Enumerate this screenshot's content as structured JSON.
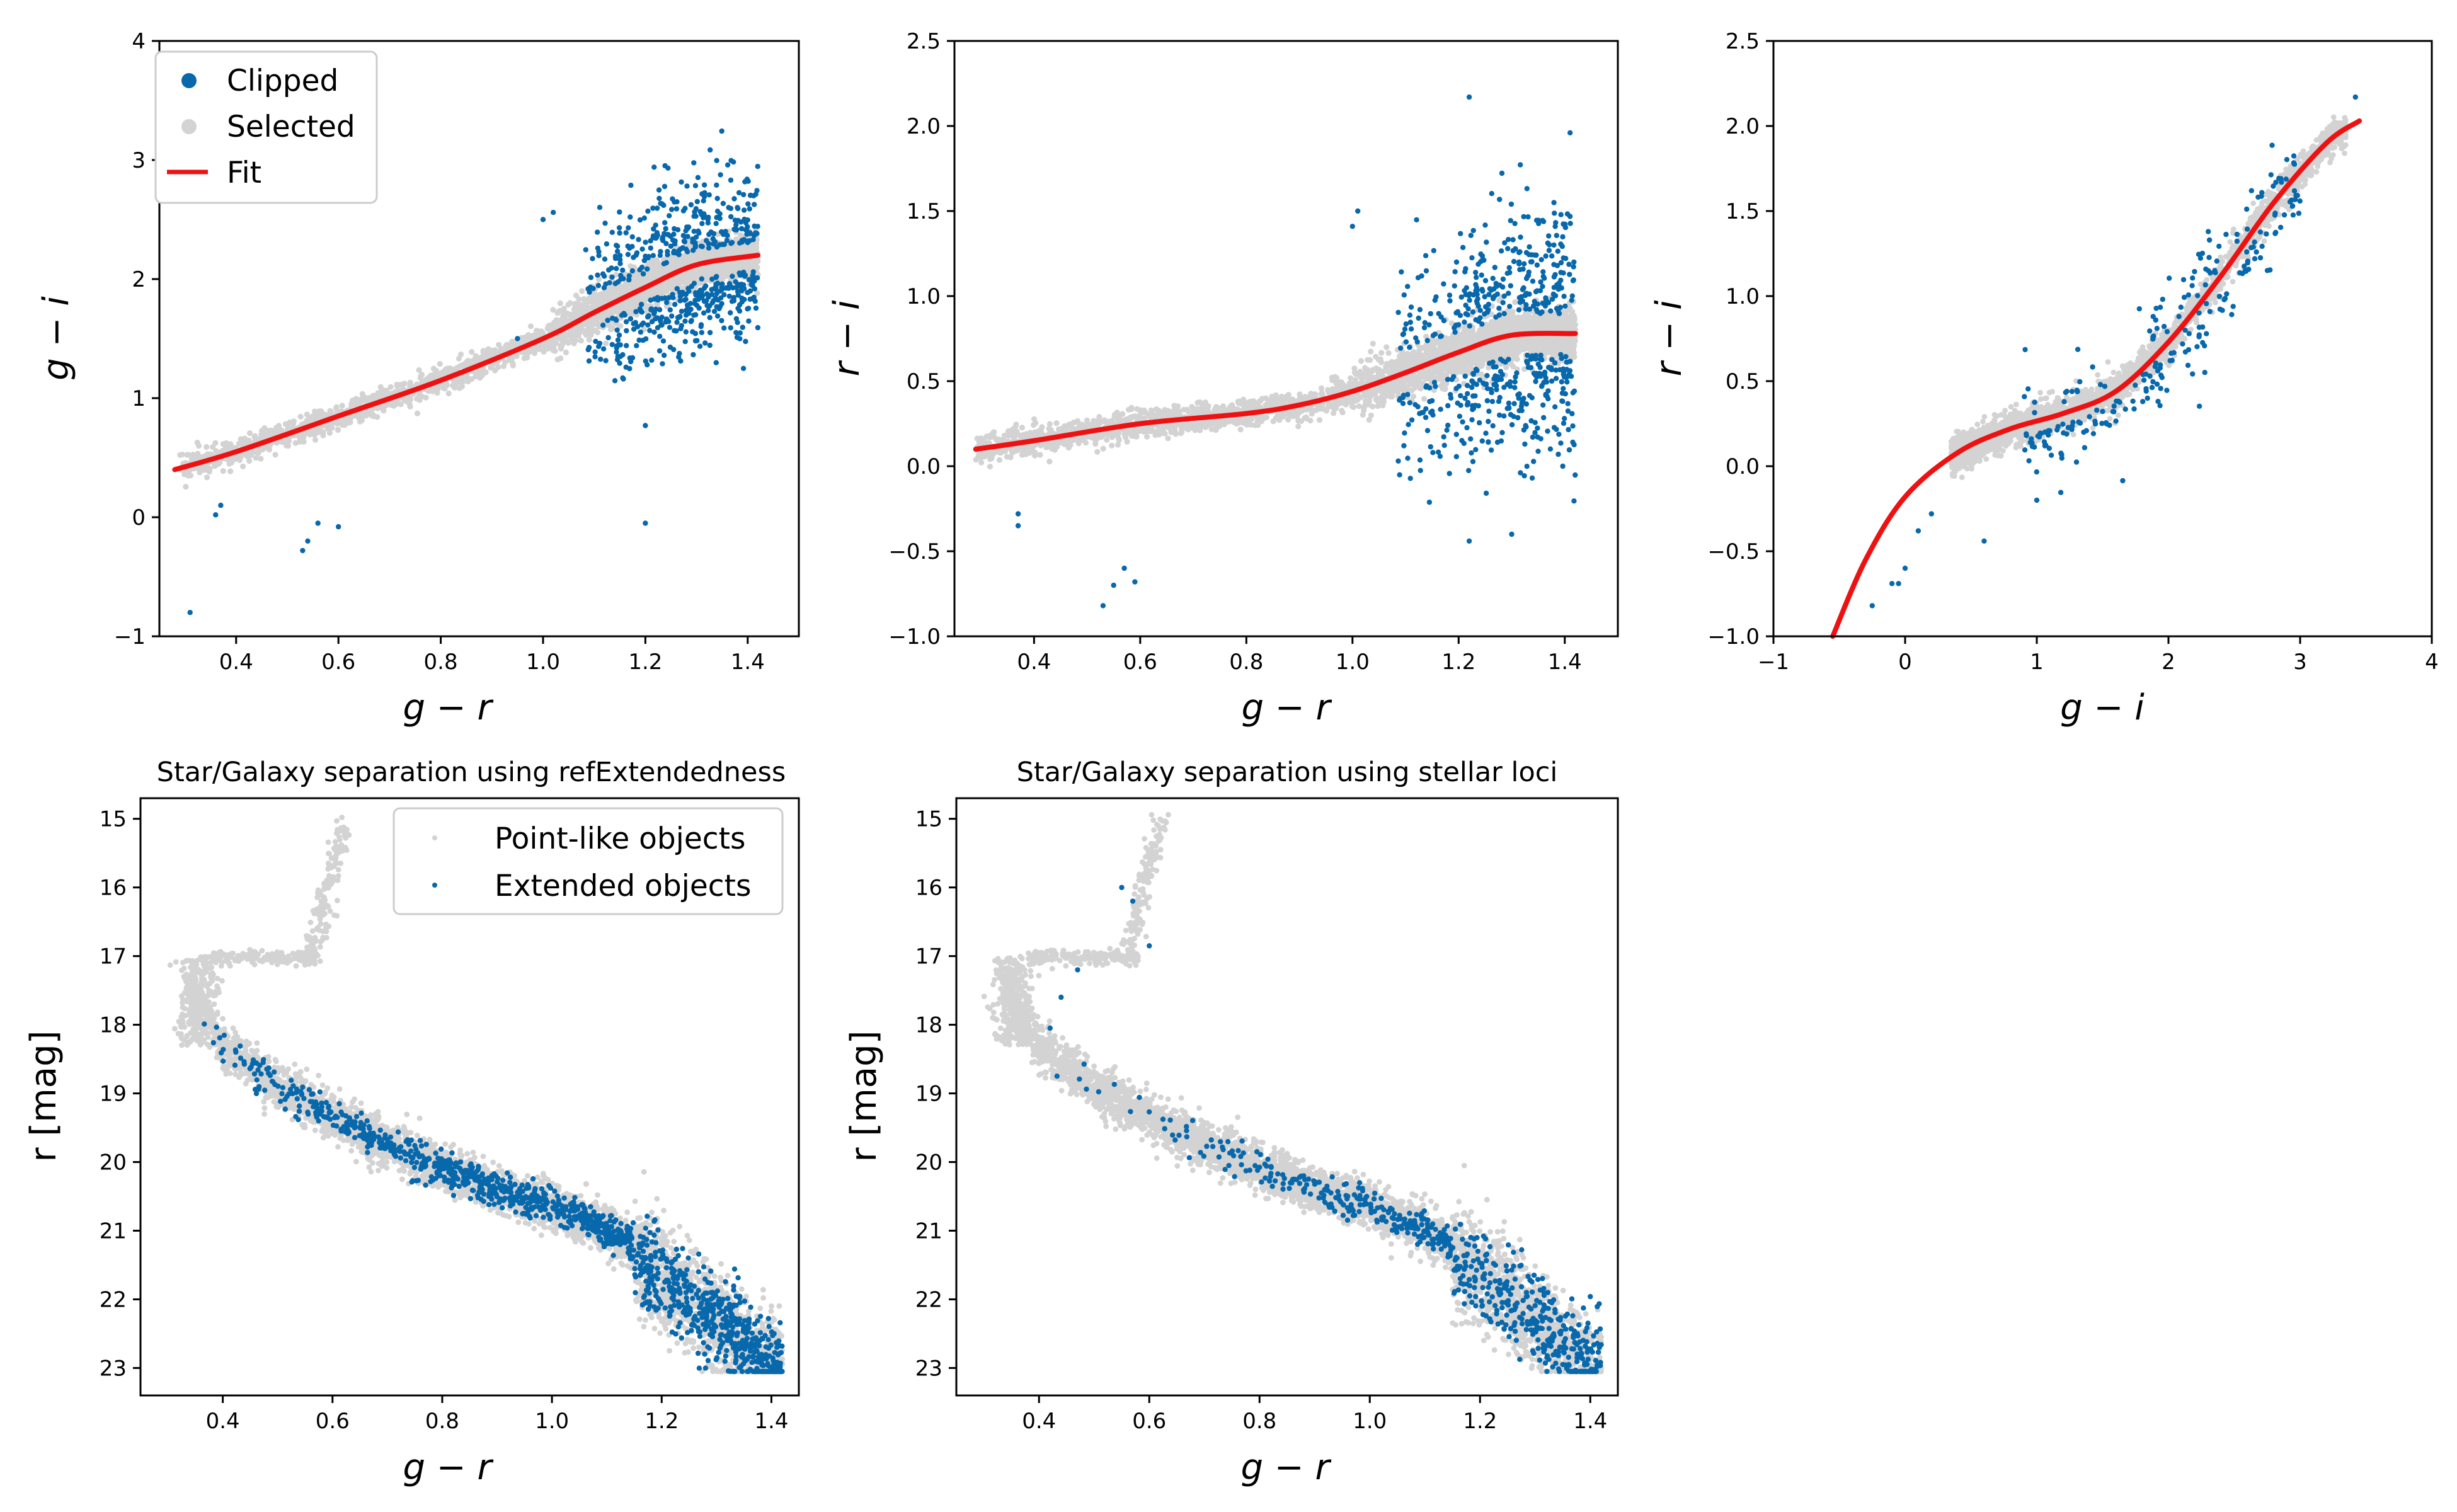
{
  "colors": {
    "clipped": "#0868ac",
    "selected": "#d3d3d3",
    "fit": "#ee1111",
    "axes": "#000000"
  },
  "chart_data": [
    {
      "id": "p1",
      "type": "scatter",
      "xlabel": "g − r",
      "ylabel": "g − i",
      "xlim": [
        0.25,
        1.5
      ],
      "ylim": [
        -1,
        4
      ],
      "xticks": [
        "0.4",
        "0.6",
        "0.8",
        "1.0",
        "1.2",
        "1.4"
      ],
      "yticks": [
        "−1",
        "0",
        "1",
        "2",
        "3",
        "4"
      ],
      "legend": {
        "position": "upper-left",
        "entries": [
          "Clipped",
          "Selected",
          "Fit"
        ]
      },
      "fit": {
        "x": [
          0.28,
          0.4,
          0.6,
          0.8,
          1.0,
          1.1,
          1.2,
          1.3,
          1.42
        ],
        "y": [
          0.4,
          0.55,
          0.85,
          1.15,
          1.5,
          1.72,
          1.93,
          2.12,
          2.2
        ]
      },
      "clipped_outliers": [
        [
          0.31,
          -0.8
        ],
        [
          0.37,
          0.1
        ],
        [
          0.36,
          0.02
        ],
        [
          0.53,
          -0.28
        ],
        [
          0.56,
          -0.05
        ],
        [
          0.6,
          -0.08
        ],
        [
          0.54,
          -0.2
        ],
        [
          1.2,
          -0.05
        ],
        [
          1.2,
          0.77
        ],
        [
          0.95,
          1.5
        ],
        [
          1.0,
          2.5
        ],
        [
          1.02,
          2.56
        ]
      ]
    },
    {
      "id": "p2",
      "type": "scatter",
      "xlabel": "g − r",
      "ylabel": "r − i",
      "xlim": [
        0.25,
        1.5
      ],
      "ylim": [
        -1,
        2.5
      ],
      "xticks": [
        "0.4",
        "0.6",
        "0.8",
        "1.0",
        "1.2",
        "1.4"
      ],
      "yticks": [
        "−1.0",
        "−0.5",
        "0.0",
        "0.5",
        "1.0",
        "1.5",
        "2.0",
        "2.5"
      ],
      "fit": {
        "x": [
          0.29,
          0.4,
          0.6,
          0.8,
          0.9,
          1.0,
          1.1,
          1.2,
          1.3,
          1.42
        ],
        "y": [
          0.1,
          0.15,
          0.25,
          0.31,
          0.36,
          0.44,
          0.55,
          0.67,
          0.77,
          0.78
        ]
      },
      "clipped_outliers": [
        [
          0.37,
          -0.28
        ],
        [
          0.37,
          -0.35
        ],
        [
          0.53,
          -0.82
        ],
        [
          0.55,
          -0.7
        ],
        [
          0.57,
          -0.6
        ],
        [
          0.59,
          -0.68
        ],
        [
          1.0,
          1.41
        ],
        [
          1.01,
          1.5
        ],
        [
          1.22,
          2.17
        ],
        [
          1.22,
          -0.44
        ],
        [
          1.3,
          -0.4
        ],
        [
          1.41,
          1.96
        ]
      ]
    },
    {
      "id": "p3",
      "type": "scatter",
      "xlabel": "g − i",
      "ylabel": "r − i",
      "xlim": [
        -1,
        4
      ],
      "ylim": [
        -1,
        2.5
      ],
      "xticks": [
        "−1",
        "0",
        "1",
        "2",
        "3",
        "4"
      ],
      "yticks": [
        "−1.0",
        "−0.5",
        "0.0",
        "0.5",
        "1.0",
        "1.5",
        "2.0",
        "2.5"
      ],
      "fit": {
        "x": [
          -0.55,
          -0.3,
          0.0,
          0.4,
          0.8,
          1.2,
          1.6,
          2.0,
          2.4,
          2.8,
          3.2,
          3.45
        ],
        "y": [
          -1.0,
          -0.55,
          -0.18,
          0.08,
          0.22,
          0.31,
          0.44,
          0.73,
          1.12,
          1.55,
          1.9,
          2.03
        ]
      },
      "clipped_outliers": [
        [
          -0.25,
          -0.82
        ],
        [
          -0.1,
          -0.69
        ],
        [
          -0.05,
          -0.69
        ],
        [
          0.0,
          -0.6
        ],
        [
          0.1,
          -0.38
        ],
        [
          0.2,
          -0.28
        ],
        [
          0.6,
          -0.44
        ],
        [
          1.0,
          -0.2
        ],
        [
          3.42,
          2.17
        ]
      ]
    },
    {
      "id": "p4",
      "type": "scatter",
      "title": "Star/Galaxy separation using refExtendedness",
      "xlabel": "g − r",
      "ylabel": "r [mag]",
      "xlim": [
        0.25,
        1.45
      ],
      "ylim": [
        23.4,
        14.7
      ],
      "xticks": [
        "0.4",
        "0.6",
        "0.8",
        "1.0",
        "1.2",
        "1.4"
      ],
      "yticks": [
        "15",
        "16",
        "17",
        "18",
        "19",
        "20",
        "21",
        "22",
        "23"
      ],
      "legend": {
        "position": "upper-right",
        "entries": [
          "Point-like objects",
          "Extended objects"
        ]
      }
    },
    {
      "id": "p5",
      "type": "scatter",
      "title": "Star/Galaxy separation using stellar loci",
      "xlabel": "g − r",
      "ylabel": "r [mag]",
      "xlim": [
        0.25,
        1.45
      ],
      "ylim": [
        23.4,
        14.7
      ],
      "xticks": [
        "0.4",
        "0.6",
        "0.8",
        "1.0",
        "1.2",
        "1.4"
      ],
      "yticks": [
        "15",
        "16",
        "17",
        "18",
        "19",
        "20",
        "21",
        "22",
        "23"
      ]
    }
  ]
}
